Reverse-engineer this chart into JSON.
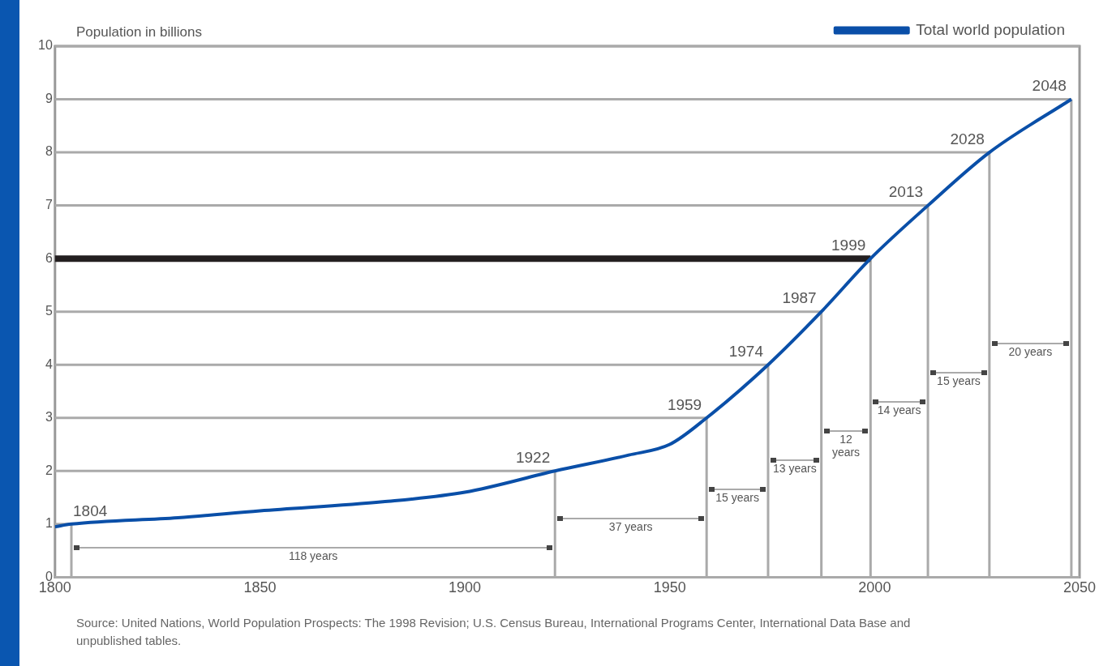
{
  "chart_data": {
    "type": "line",
    "ylabel": "Population in billions",
    "x": [
      1800,
      1804,
      1830,
      1850,
      1880,
      1900,
      1922,
      1940,
      1950,
      1959,
      1974,
      1987,
      1999,
      2013,
      2028,
      2048
    ],
    "series": [
      {
        "name": "Total world population",
        "color": "#0a4fa8",
        "values": [
          0.95,
          1,
          1.12,
          1.25,
          1.42,
          1.6,
          2,
          2.3,
          2.5,
          3,
          4,
          5,
          6,
          7,
          8,
          9
        ]
      }
    ],
    "xlim": [
      1800,
      2050
    ],
    "xticks": [
      1800,
      1850,
      1900,
      1950,
      2000,
      2050
    ],
    "ylim": [
      0,
      10
    ],
    "yticks": [
      0,
      1,
      2,
      3,
      4,
      5,
      6,
      7,
      8,
      9,
      10
    ],
    "grid": "y",
    "legend": "top right",
    "marker": "none",
    "line_style": "solid",
    "ref_lines": [
      {
        "axis": "y",
        "value": 6,
        "color": "#231f20"
      }
    ],
    "annotations": [
      {
        "text": "1804",
        "x": 1804,
        "y": 1
      },
      {
        "text": "1922",
        "x": 1922,
        "y": 2
      },
      {
        "text": "1959",
        "x": 1959,
        "y": 3
      },
      {
        "text": "1974",
        "x": 1974,
        "y": 4
      },
      {
        "text": "1987",
        "x": 1987,
        "y": 5
      },
      {
        "text": "1999",
        "x": 1999,
        "y": 6
      },
      {
        "text": "2013",
        "x": 2013,
        "y": 7
      },
      {
        "text": "2028",
        "x": 2028,
        "y": 8
      },
      {
        "text": "2048",
        "x": 2048,
        "y": 9
      },
      "118 years",
      "37 years",
      "15 years",
      "13 years",
      "12 years",
      "14 years",
      "15 years",
      "20 years",
      "Source:  United Nations, World Population Prospects:  The 1998 Revision; U.S. Census Bureau, International Programs Center, International Data Base and unpublished tables."
    ]
  }
}
